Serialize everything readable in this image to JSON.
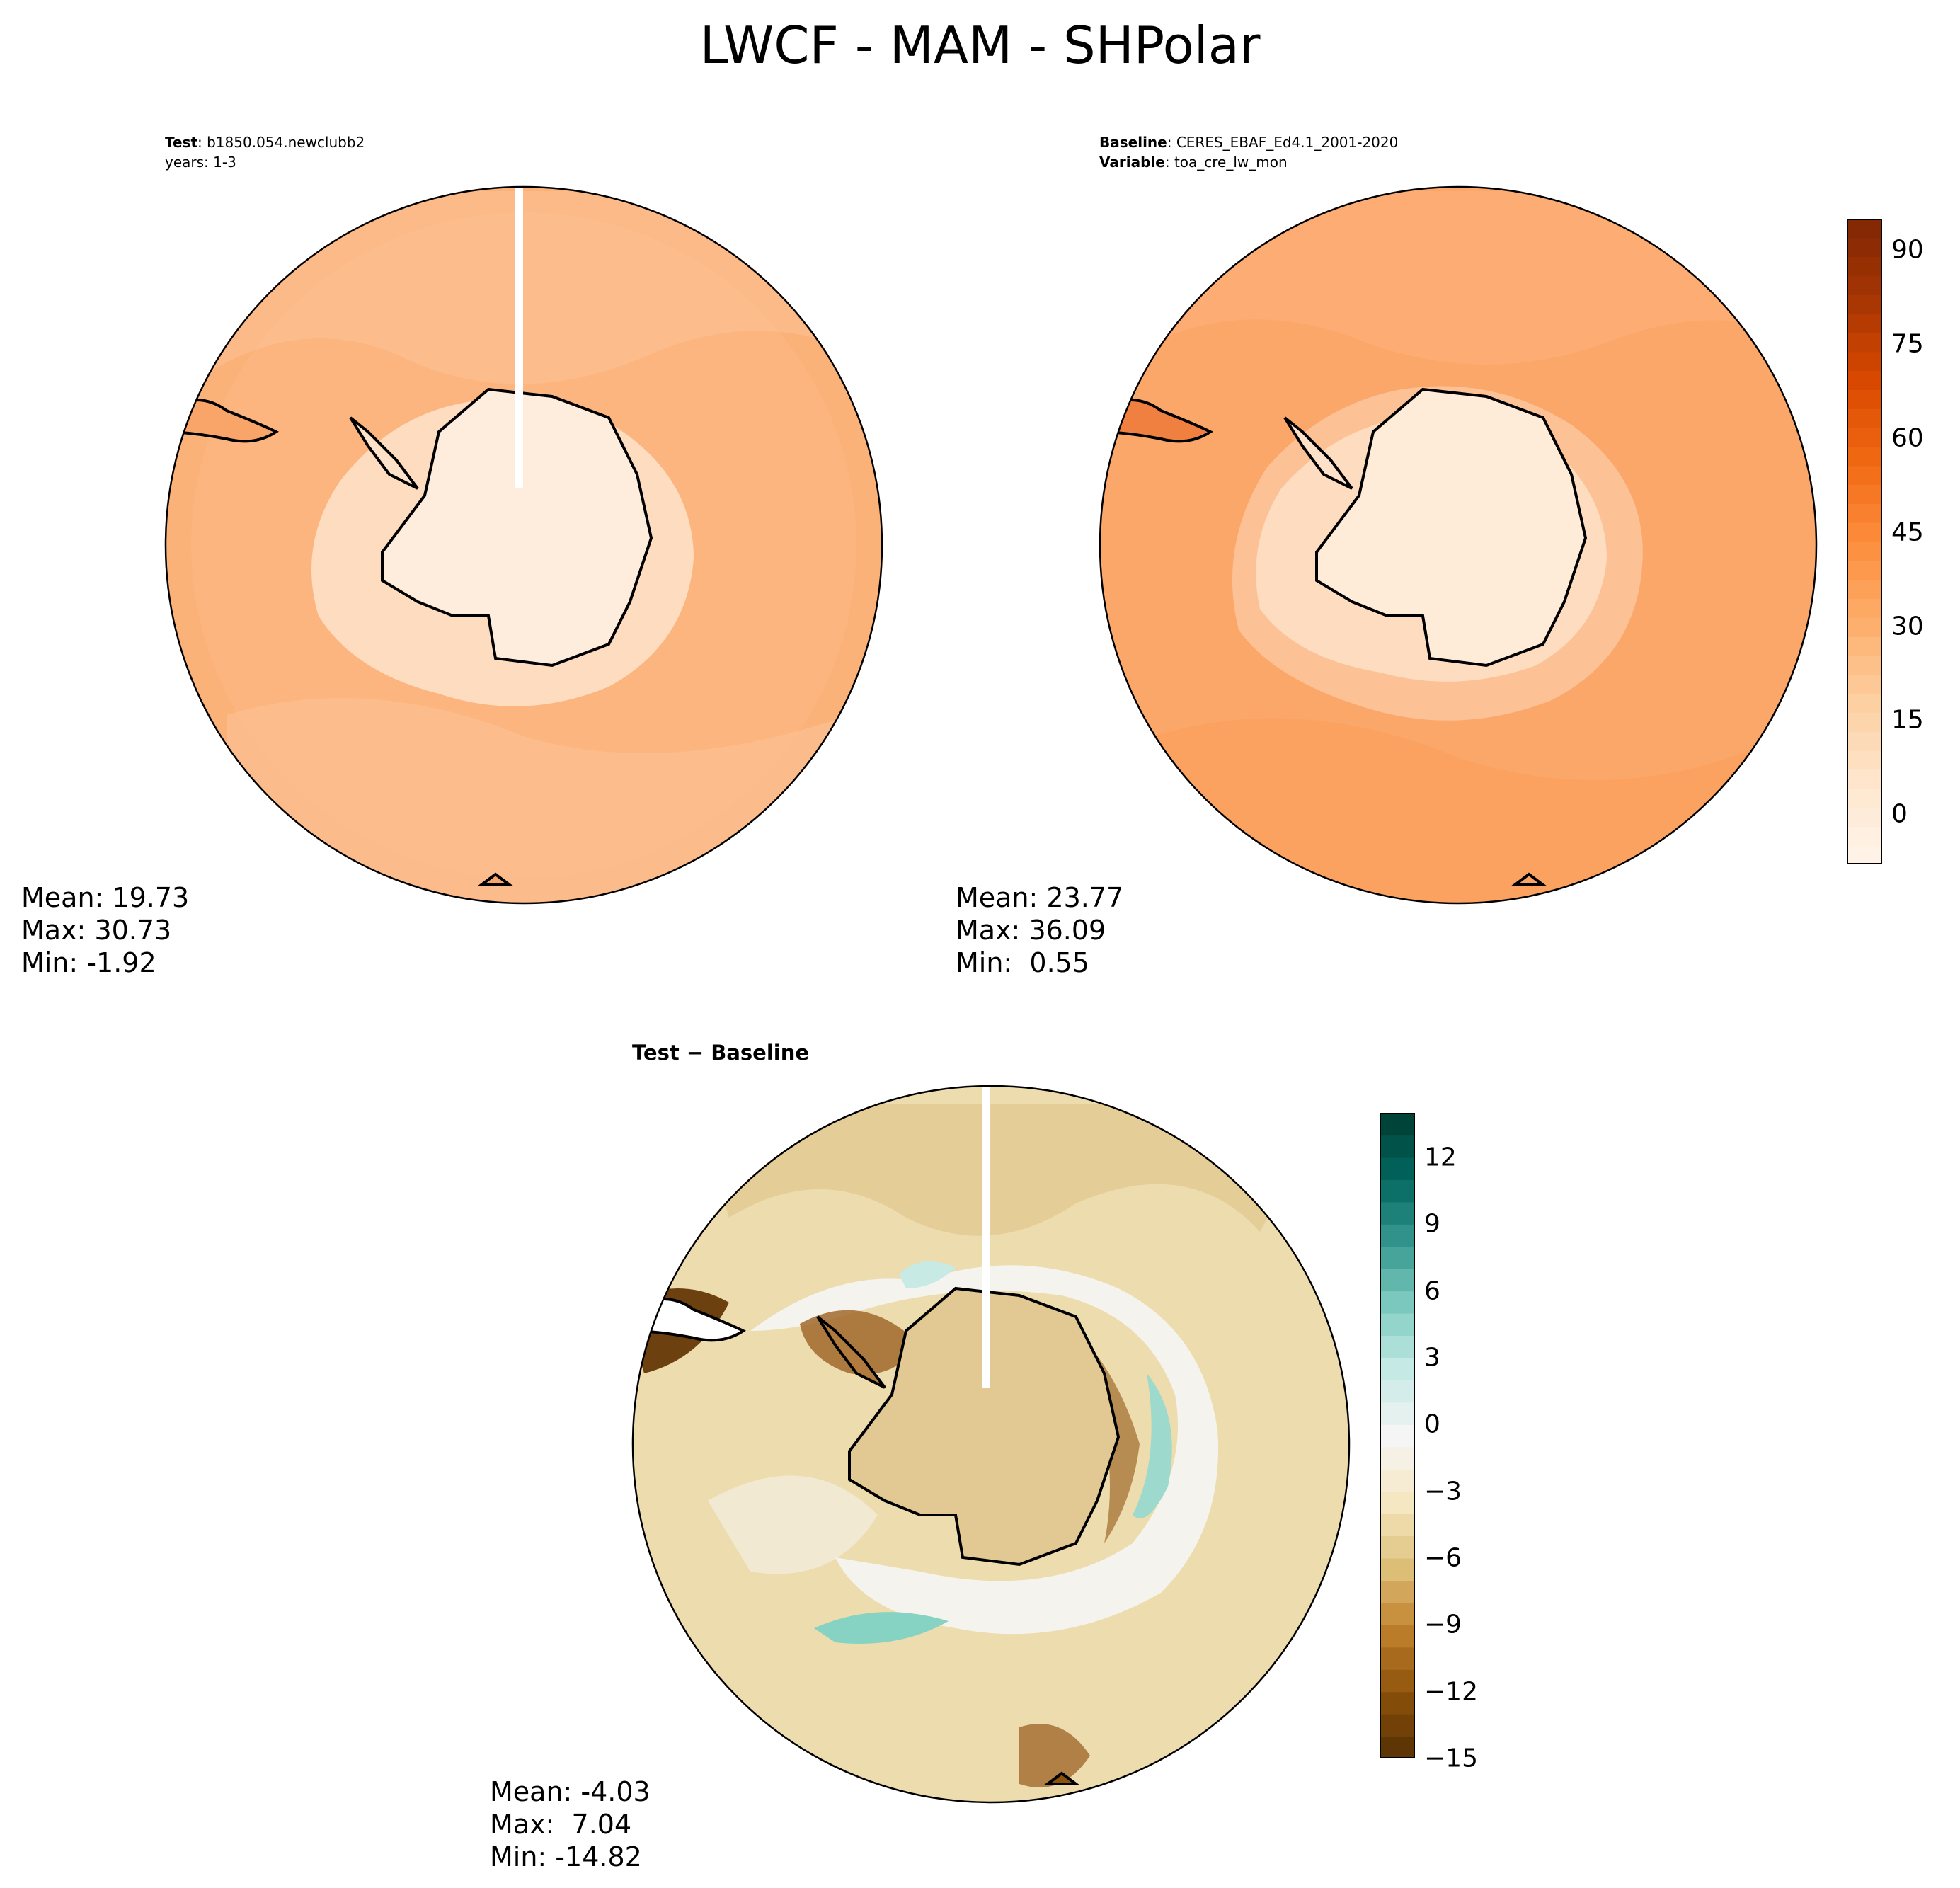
{
  "figure": {
    "title": "LWCF - MAM - SHPolar"
  },
  "panels": {
    "test": {
      "label1": "Test",
      "value1": ": b1850.054.newclubb2",
      "line2": "years: 1-3",
      "mean_line": "Mean: 19.73",
      "max_line": "Max: 30.73",
      "min_line": "Min: -1.92"
    },
    "baseline": {
      "label1": "Baseline",
      "value1": ": CERES_EBAF_Ed4.1_2001-2020",
      "label2": "Variable",
      "value2": ": toa_cre_lw_mon",
      "mean_line": "Mean: 23.77",
      "max_line": "Max: 36.09",
      "min_line": "Min:  0.55"
    },
    "diff": {
      "title": "Test − Baseline",
      "mean_line": "Mean: -4.03",
      "max_line": "Max:  7.04",
      "min_line": "Min: -14.82"
    }
  },
  "chart_data": [
    {
      "type": "heatmap",
      "projection": "south-polar-stereographic",
      "name": "Test",
      "case": "b1850.054.newclubb2",
      "years": "1-3",
      "stats": {
        "mean": 19.73,
        "max": 30.73,
        "min": -1.92
      },
      "colormap": "Oranges",
      "field_description": "LWCF ~0-8 over Antarctic interior, ~15-25 over Southern Ocean"
    },
    {
      "type": "heatmap",
      "projection": "south-polar-stereographic",
      "name": "Baseline",
      "case": "CERES_EBAF_Ed4.1_2001-2020",
      "variable": "toa_cre_lw_mon",
      "stats": {
        "mean": 23.77,
        "max": 36.09,
        "min": 0.55
      },
      "colormap": "Oranges",
      "colorbar": {
        "range": [
          -8,
          95
        ],
        "ticks": [
          0,
          15,
          30,
          45,
          60,
          75,
          90
        ],
        "tick_labels": [
          "0",
          "15",
          "30",
          "45",
          "60",
          "75",
          "90"
        ]
      }
    },
    {
      "type": "heatmap",
      "projection": "south-polar-stereographic",
      "name": "Test − Baseline",
      "stats": {
        "mean": -4.03,
        "max": 7.04,
        "min": -14.82
      },
      "colormap": "BrBG",
      "colorbar": {
        "range": [
          -15,
          14
        ],
        "ticks": [
          -15,
          -12,
          -9,
          -6,
          -3,
          0,
          3,
          6,
          9,
          12
        ],
        "tick_labels": [
          "−15",
          "−12",
          "−9",
          "−6",
          "−3",
          "0",
          "3",
          "6",
          "9",
          "12"
        ]
      }
    }
  ],
  "colors": {
    "oranges": [
      "#fff5eb",
      "#fee6ce",
      "#fdd0a2",
      "#fdae6b",
      "#fd8d3c",
      "#f16913",
      "#d94801",
      "#a63603",
      "#7f2704"
    ],
    "brbg": [
      "#543005",
      "#8c510a",
      "#bf812d",
      "#dfc27d",
      "#f6e8c3",
      "#f5f5f5",
      "#c7eae5",
      "#80cdc1",
      "#35978f",
      "#01665e",
      "#003c30"
    ]
  }
}
